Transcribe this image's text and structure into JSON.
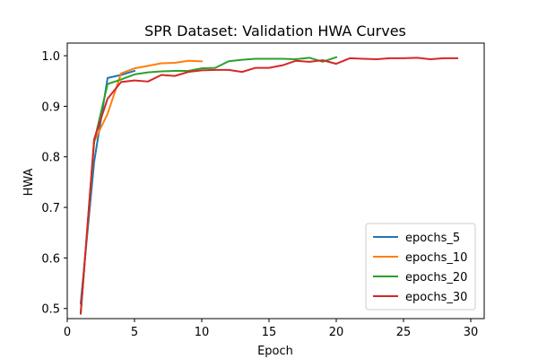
{
  "chart_data": {
    "type": "line",
    "title": "SPR Dataset: Validation HWA Curves",
    "xlabel": "Epoch",
    "ylabel": "HWA",
    "xlim": [
      0,
      31
    ],
    "ylim": [
      0.48,
      1.025
    ],
    "xticks": [
      0,
      5,
      10,
      15,
      20,
      25,
      30
    ],
    "yticks": [
      0.5,
      0.6,
      0.7,
      0.8,
      0.9,
      1.0
    ],
    "ytick_labels": [
      "0.5",
      "0.6",
      "0.7",
      "0.8",
      "0.9",
      "1.0"
    ],
    "grid": false,
    "legend_position": "lower right",
    "series": [
      {
        "name": "epochs_5",
        "color": "#1f77b4",
        "x": [
          1,
          2,
          3,
          4,
          5
        ],
        "y": [
          0.51,
          0.79,
          0.956,
          0.962,
          0.97
        ]
      },
      {
        "name": "epochs_10",
        "color": "#ff7f0e",
        "x": [
          1,
          2,
          3,
          4,
          5,
          6,
          7,
          8,
          9,
          10
        ],
        "y": [
          0.49,
          0.83,
          0.885,
          0.965,
          0.975,
          0.98,
          0.985,
          0.986,
          0.99,
          0.989
        ]
      },
      {
        "name": "epochs_20",
        "color": "#2ca02c",
        "x": [
          1,
          2,
          3,
          4,
          5,
          6,
          7,
          8,
          9,
          10,
          11,
          12,
          13,
          14,
          15,
          16,
          17,
          18,
          19,
          20
        ],
        "y": [
          0.49,
          0.83,
          0.944,
          0.953,
          0.963,
          0.967,
          0.969,
          0.97,
          0.97,
          0.975,
          0.976,
          0.989,
          0.992,
          0.994,
          0.994,
          0.994,
          0.993,
          0.996,
          0.988,
          0.997
        ]
      },
      {
        "name": "epochs_30",
        "color": "#d62728",
        "x": [
          1,
          2,
          3,
          4,
          5,
          6,
          7,
          8,
          9,
          10,
          11,
          12,
          13,
          14,
          15,
          16,
          17,
          18,
          19,
          20,
          21,
          22,
          23,
          24,
          25,
          26,
          27,
          28,
          29
        ],
        "y": [
          0.49,
          0.835,
          0.915,
          0.948,
          0.951,
          0.949,
          0.962,
          0.96,
          0.968,
          0.971,
          0.972,
          0.972,
          0.968,
          0.976,
          0.976,
          0.981,
          0.99,
          0.988,
          0.991,
          0.984,
          0.995,
          0.994,
          0.993,
          0.995,
          0.995,
          0.996,
          0.993,
          0.995,
          0.995
        ]
      }
    ]
  }
}
